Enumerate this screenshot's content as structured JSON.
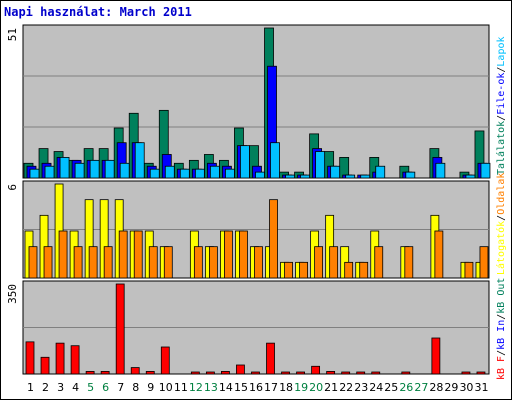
{
  "title": "Napi használat: March 2011",
  "colors": {
    "background": "#c0c0c0",
    "border": "#000000",
    "grid": "#808080",
    "hits": "#00805c",
    "files": "#0000ff",
    "pages": "#00c0ff",
    "visits": "#ffff00",
    "sites": "#ff8000",
    "kbytes": "#ff0000",
    "title": "#0000cc",
    "weekend_label": "#008040",
    "weekday_label": "#000000"
  },
  "legend": {
    "top": [
      {
        "label": "Találatok",
        "color": "#00805c"
      },
      {
        "label": "File-ok",
        "color": "#0000ff"
      },
      {
        "label": "Lapok",
        "color": "#00c0ff"
      }
    ],
    "middle": [
      {
        "label": "Látogatók",
        "color": "#ffff00"
      },
      {
        "label": "Oldalak",
        "color": "#ff8000"
      }
    ],
    "bottom": [
      {
        "label": "kB F",
        "color": "#ff0000"
      },
      {
        "label": "kB In",
        "color": "#0000ff"
      },
      {
        "label": "kB Out",
        "color": "#00805c"
      }
    ]
  },
  "chart_data": [
    {
      "type": "bar",
      "panel": "top",
      "ymax_label": "51",
      "ylim": [
        0,
        51
      ],
      "categories": [
        "1",
        "2",
        "3",
        "4",
        "5",
        "6",
        "7",
        "8",
        "9",
        "10",
        "11",
        "12",
        "13",
        "14",
        "15",
        "16",
        "17",
        "18",
        "19",
        "20",
        "21",
        "22",
        "23",
        "24",
        "25",
        "26",
        "27",
        "28",
        "29",
        "30",
        "31"
      ],
      "weekend": [
        5,
        6,
        12,
        13,
        19,
        20,
        26,
        27
      ],
      "series": [
        {
          "name": "Találatok",
          "values": [
            5,
            10,
            9,
            6,
            10,
            10,
            17,
            22,
            5,
            23,
            5,
            6,
            8,
            6,
            17,
            11,
            51,
            2,
            2,
            15,
            9,
            7,
            0,
            7,
            0,
            4,
            0,
            10,
            0,
            2,
            16
          ]
        },
        {
          "name": "File-ok",
          "values": [
            4,
            5,
            7,
            6,
            6,
            6,
            12,
            12,
            4,
            8,
            3,
            3,
            5,
            4,
            11,
            4,
            38,
            1,
            1,
            10,
            4,
            1,
            1,
            2,
            0,
            2,
            0,
            7,
            0,
            1,
            5
          ]
        },
        {
          "name": "Lapok",
          "values": [
            3,
            4,
            7,
            5,
            6,
            6,
            5,
            12,
            3,
            4,
            3,
            3,
            4,
            3,
            11,
            2,
            12,
            1,
            1,
            9,
            4,
            1,
            1,
            4,
            0,
            2,
            0,
            5,
            0,
            1,
            5
          ]
        }
      ]
    },
    {
      "type": "bar",
      "panel": "middle",
      "ymax_label": "6",
      "ylim": [
        0,
        6
      ],
      "categories": [
        "1",
        "2",
        "3",
        "4",
        "5",
        "6",
        "7",
        "8",
        "9",
        "10",
        "11",
        "12",
        "13",
        "14",
        "15",
        "16",
        "17",
        "18",
        "19",
        "20",
        "21",
        "22",
        "23",
        "24",
        "25",
        "26",
        "27",
        "28",
        "29",
        "30",
        "31"
      ],
      "series": [
        {
          "name": "Látogatók",
          "values": [
            3,
            4,
            6,
            3,
            5,
            5,
            5,
            3,
            3,
            2,
            0,
            3,
            2,
            3,
            3,
            2,
            2,
            1,
            1,
            3,
            4,
            2,
            1,
            3,
            0,
            2,
            0,
            4,
            0,
            1,
            1
          ]
        },
        {
          "name": "Oldalak",
          "values": [
            2,
            2,
            3,
            2,
            2,
            2,
            3,
            3,
            2,
            2,
            0,
            2,
            2,
            3,
            3,
            2,
            5,
            1,
            1,
            2,
            2,
            1,
            1,
            2,
            0,
            2,
            0,
            3,
            0,
            1,
            2
          ]
        }
      ]
    },
    {
      "type": "bar",
      "panel": "bottom",
      "ymax_label": "350",
      "ylim": [
        0,
        350
      ],
      "categories": [
        "1",
        "2",
        "3",
        "4",
        "5",
        "6",
        "7",
        "8",
        "9",
        "10",
        "11",
        "12",
        "13",
        "14",
        "15",
        "16",
        "17",
        "18",
        "19",
        "20",
        "21",
        "22",
        "23",
        "24",
        "25",
        "26",
        "27",
        "28",
        "29",
        "30",
        "31"
      ],
      "series": [
        {
          "name": "kB F",
          "values": [
            125,
            65,
            120,
            110,
            10,
            10,
            350,
            25,
            10,
            105,
            0,
            5,
            5,
            10,
            35,
            5,
            120,
            5,
            5,
            30,
            10,
            5,
            5,
            5,
            0,
            5,
            0,
            140,
            0,
            5,
            5
          ]
        }
      ]
    }
  ]
}
